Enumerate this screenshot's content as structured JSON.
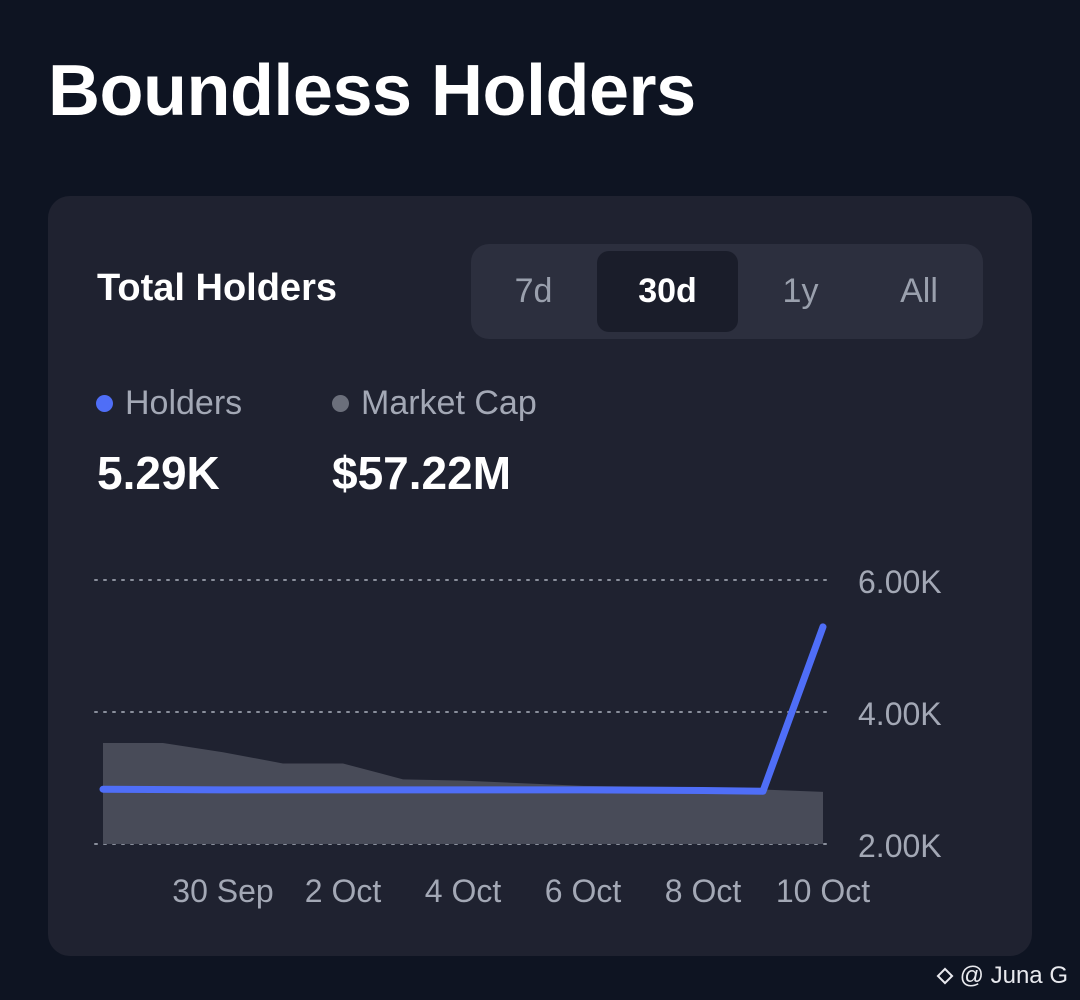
{
  "page": {
    "title": "Boundless Holders"
  },
  "card": {
    "title": "Total Holders",
    "tabs": [
      {
        "label": "7d",
        "active": false
      },
      {
        "label": "30d",
        "active": true
      },
      {
        "label": "1y",
        "active": false
      },
      {
        "label": "All",
        "active": false
      }
    ],
    "legend": [
      {
        "label": "Holders",
        "value": "5.29K",
        "color": "#4f6ef7"
      },
      {
        "label": "Market Cap",
        "value": "$57.22M",
        "color": "#6b6f7b"
      }
    ]
  },
  "chart_data": {
    "type": "line",
    "x_tick_labels": [
      "30 Sep",
      "2 Oct",
      "4 Oct",
      "6 Oct",
      "8 Oct",
      "10 Oct"
    ],
    "y_tick_labels": [
      "6.00K",
      "4.00K",
      "2.00K"
    ],
    "y_ticks": [
      6000,
      4000,
      2000
    ],
    "ylim": [
      2000,
      6000
    ],
    "series": [
      {
        "name": "Holders",
        "color": "#4f6ef7",
        "style": "line",
        "points": [
          [
            "28 Sep",
            2830
          ],
          [
            "30 Sep",
            2820
          ],
          [
            "2 Oct",
            2820
          ],
          [
            "4 Oct",
            2820
          ],
          [
            "6 Oct",
            2820
          ],
          [
            "8 Oct",
            2810
          ],
          [
            "9 Oct",
            2800
          ],
          [
            "10 Oct",
            5290
          ]
        ]
      },
      {
        "name": "Market Cap",
        "color": "#484b58",
        "style": "area",
        "points": [
          [
            "28 Sep",
            3530
          ],
          [
            "29 Sep",
            3530
          ],
          [
            "30 Sep",
            3390
          ],
          [
            "1 Oct",
            3220
          ],
          [
            "2 Oct",
            3220
          ],
          [
            "3 Oct",
            2980
          ],
          [
            "4 Oct",
            2960
          ],
          [
            "6 Oct",
            2880
          ],
          [
            "8 Oct",
            2860
          ],
          [
            "10 Oct",
            2790
          ]
        ]
      }
    ],
    "grid": "dotted horizontal",
    "y_axis_position": "right"
  },
  "footer": {
    "watermark": "@ Juna G",
    "logo_icon": "binance-diamond-icon"
  }
}
